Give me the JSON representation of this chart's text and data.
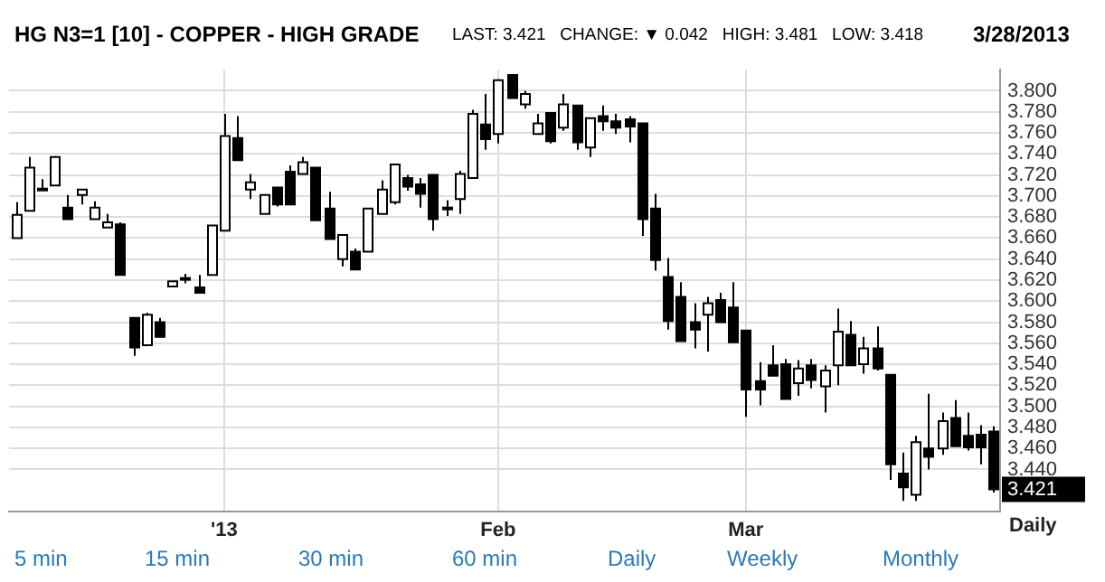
{
  "chart_data": {
    "type": "candlestick",
    "title": "HG N3=1 [10] - COPPER - HIGH GRADE",
    "subtitle": "LAST: 3.421   CHANGE: ▼ 0.042   HIGH: 3.481   LOW: 3.418",
    "categories": [
      null,
      null,
      null,
      null,
      null,
      null,
      null,
      null,
      null,
      null,
      null,
      null,
      null,
      null,
      null,
      null,
      "'13",
      null,
      null,
      null,
      null,
      null,
      null,
      null,
      null,
      null,
      null,
      null,
      null,
      null,
      null,
      null,
      null,
      null,
      null,
      null,
      null,
      "Feb",
      null,
      null,
      null,
      null,
      null,
      null,
      null,
      null,
      null,
      null,
      null,
      null,
      null,
      null,
      null,
      null,
      null,
      null,
      "Mar",
      null,
      null,
      null,
      null,
      null,
      null,
      null,
      null,
      null,
      null,
      null,
      null,
      null,
      null,
      null,
      null,
      null,
      null,
      null
    ],
    "ohlc": [
      [
        3.66,
        3.694,
        3.66,
        3.682
      ],
      [
        3.686,
        3.737,
        3.686,
        3.727
      ],
      [
        3.707,
        3.716,
        3.707,
        3.707
      ],
      [
        3.71,
        3.738,
        3.71,
        3.737
      ],
      [
        3.689,
        3.701,
        3.678,
        3.678
      ],
      [
        3.701,
        3.706,
        3.692,
        3.706
      ],
      [
        3.678,
        3.695,
        3.678,
        3.689
      ],
      [
        3.67,
        3.683,
        3.67,
        3.675
      ],
      [
        3.673,
        3.675,
        3.625,
        3.625
      ],
      [
        3.584,
        3.584,
        3.548,
        3.556
      ],
      [
        3.558,
        3.589,
        3.558,
        3.587
      ],
      [
        3.58,
        3.584,
        3.566,
        3.566
      ],
      [
        3.614,
        3.619,
        3.614,
        3.619
      ],
      [
        3.622,
        3.626,
        3.617,
        3.622
      ],
      [
        3.613,
        3.625,
        3.608,
        3.608
      ],
      [
        3.625,
        3.672,
        3.625,
        3.672
      ],
      [
        3.667,
        3.778,
        3.667,
        3.757
      ],
      [
        3.755,
        3.776,
        3.734,
        3.734
      ],
      [
        3.706,
        3.721,
        3.697,
        3.713
      ],
      [
        3.683,
        3.701,
        3.683,
        3.701
      ],
      [
        3.708,
        3.708,
        3.69,
        3.692
      ],
      [
        3.723,
        3.729,
        3.692,
        3.692
      ],
      [
        3.721,
        3.737,
        3.721,
        3.732
      ],
      [
        3.727,
        3.727,
        3.677,
        3.677
      ],
      [
        3.688,
        3.704,
        3.659,
        3.659
      ],
      [
        3.64,
        3.663,
        3.633,
        3.663
      ],
      [
        3.647,
        3.65,
        3.63,
        3.63
      ],
      [
        3.647,
        3.688,
        3.647,
        3.688
      ],
      [
        3.683,
        3.715,
        3.683,
        3.706
      ],
      [
        3.694,
        3.73,
        3.692,
        3.73
      ],
      [
        3.717,
        3.72,
        3.705,
        3.709
      ],
      [
        3.711,
        3.717,
        3.689,
        3.702
      ],
      [
        3.72,
        3.72,
        3.667,
        3.678
      ],
      [
        3.689,
        3.696,
        3.681,
        3.689
      ],
      [
        3.697,
        3.724,
        3.683,
        3.721
      ],
      [
        3.717,
        3.782,
        3.717,
        3.778
      ],
      [
        3.768,
        3.797,
        3.744,
        3.754
      ],
      [
        3.759,
        3.811,
        3.75,
        3.81
      ],
      [
        3.815,
        3.815,
        3.793,
        3.793
      ],
      [
        3.787,
        3.8,
        3.783,
        3.797
      ],
      [
        3.759,
        3.778,
        3.759,
        3.769
      ],
      [
        3.779,
        3.779,
        3.75,
        3.752
      ],
      [
        3.765,
        3.797,
        3.762,
        3.787
      ],
      [
        3.786,
        3.786,
        3.744,
        3.751
      ],
      [
        3.746,
        3.774,
        3.737,
        3.774
      ],
      [
        3.776,
        3.786,
        3.762,
        3.771
      ],
      [
        3.771,
        3.778,
        3.759,
        3.765
      ],
      [
        3.773,
        3.776,
        3.751,
        3.766
      ],
      [
        3.769,
        3.769,
        3.662,
        3.678
      ],
      [
        3.688,
        3.702,
        3.629,
        3.639
      ],
      [
        3.623,
        3.641,
        3.573,
        3.581
      ],
      [
        3.604,
        3.618,
        3.562,
        3.562
      ],
      [
        3.58,
        3.598,
        3.555,
        3.573
      ],
      [
        3.587,
        3.604,
        3.552,
        3.598
      ],
      [
        3.601,
        3.608,
        3.58,
        3.58
      ],
      [
        3.594,
        3.618,
        3.561,
        3.561
      ],
      [
        3.572,
        3.572,
        3.49,
        3.516
      ],
      [
        3.524,
        3.542,
        3.501,
        3.516
      ],
      [
        3.539,
        3.558,
        3.529,
        3.529
      ],
      [
        3.54,
        3.545,
        3.507,
        3.507
      ],
      [
        3.522,
        3.544,
        3.51,
        3.536
      ],
      [
        3.539,
        3.545,
        3.517,
        3.525
      ],
      [
        3.519,
        3.539,
        3.494,
        3.534
      ],
      [
        3.539,
        3.593,
        3.52,
        3.571
      ],
      [
        3.568,
        3.581,
        3.539,
        3.539
      ],
      [
        3.54,
        3.566,
        3.531,
        3.555
      ],
      [
        3.555,
        3.576,
        3.534,
        3.536
      ],
      [
        3.53,
        3.53,
        3.43,
        3.445
      ],
      [
        3.436,
        3.456,
        3.41,
        3.423
      ],
      [
        3.416,
        3.472,
        3.41,
        3.466
      ],
      [
        3.46,
        3.512,
        3.44,
        3.452
      ],
      [
        3.46,
        3.494,
        3.454,
        3.486
      ],
      [
        3.489,
        3.506,
        3.462,
        3.462
      ],
      [
        3.472,
        3.494,
        3.458,
        3.461
      ],
      [
        3.473,
        3.482,
        3.445,
        3.461
      ],
      [
        3.476,
        3.481,
        3.418,
        3.421
      ]
    ],
    "ylim": [
      3.4,
      3.82
    ],
    "yticks": [
      {
        "value": 3.44,
        "label": "3.440"
      },
      {
        "value": 3.46,
        "label": "3.460"
      },
      {
        "value": 3.48,
        "label": "3.480"
      },
      {
        "value": 3.5,
        "label": "3.500"
      },
      {
        "value": 3.52,
        "label": "3.520"
      },
      {
        "value": 3.54,
        "label": "3.540"
      },
      {
        "value": 3.56,
        "label": "3.560"
      },
      {
        "value": 3.58,
        "label": "3.580"
      },
      {
        "value": 3.6,
        "label": "3.600"
      },
      {
        "value": 3.62,
        "label": "3.620"
      },
      {
        "value": 3.64,
        "label": "3.640"
      },
      {
        "value": 3.66,
        "label": "3.660"
      },
      {
        "value": 3.68,
        "label": "3.680"
      },
      {
        "value": 3.7,
        "label": "3.700"
      },
      {
        "value": 3.72,
        "label": "3.720"
      },
      {
        "value": 3.74,
        "label": "3.740"
      },
      {
        "value": 3.76,
        "label": "3.760"
      },
      {
        "value": 3.78,
        "label": "3.780"
      },
      {
        "value": 3.8,
        "label": "3.800"
      }
    ],
    "grid": true,
    "legend": false,
    "annotations": [
      "3/28/2013",
      "3.421",
      "Daily",
      "5 min",
      "15 min",
      "30 min",
      "60 min",
      "Daily",
      "Weekly",
      "Monthly"
    ]
  }
}
